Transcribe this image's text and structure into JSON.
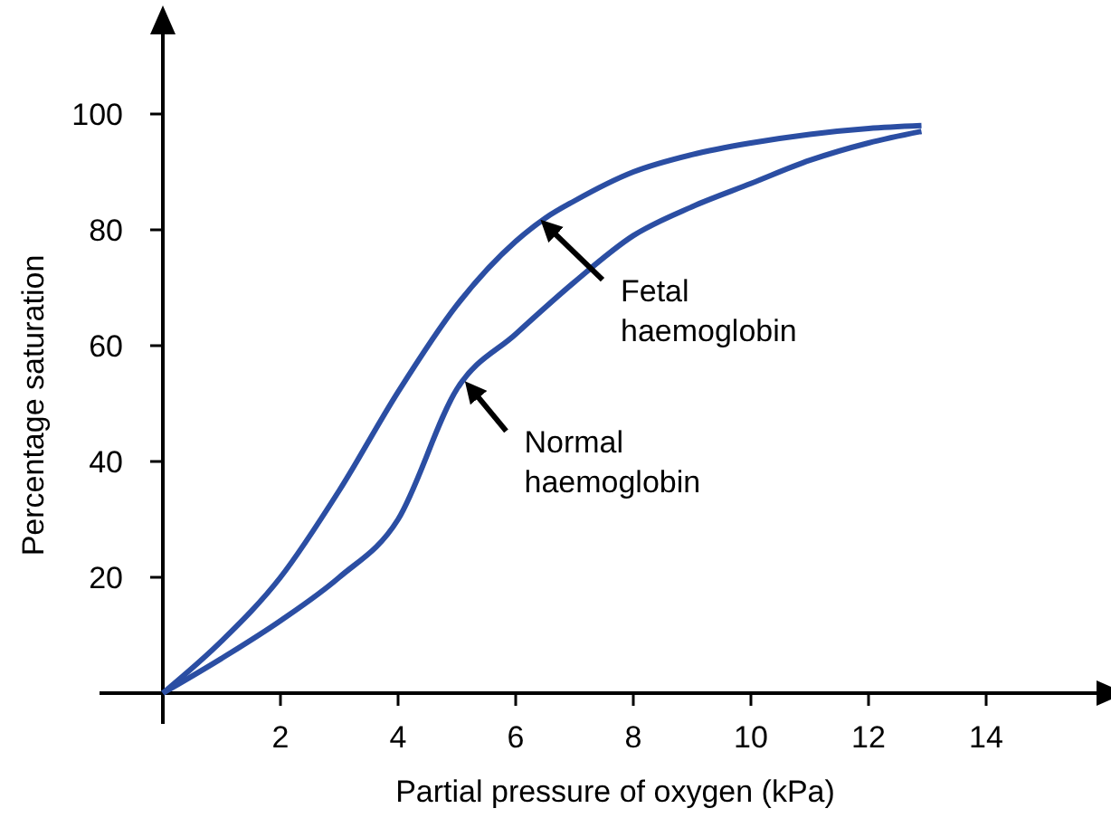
{
  "chart_data": {
    "type": "line",
    "xlabel": "Partial pressure of oxygen (kPa)",
    "ylabel": "Percentage saturation",
    "xlim": [
      0,
      16
    ],
    "ylim": [
      0,
      115
    ],
    "xticks": [
      2,
      4,
      6,
      8,
      10,
      12,
      14
    ],
    "yticks": [
      20,
      40,
      60,
      80,
      100
    ],
    "grid": false,
    "marker": "none",
    "line_style": "solid",
    "series": [
      {
        "color": "#2b4ea3",
        "x": [
          0,
          1,
          2,
          3,
          4,
          5,
          6,
          6.5,
          7,
          8,
          9,
          10,
          11,
          12,
          12.9
        ],
        "values": [
          0,
          9,
          20,
          35,
          52,
          67,
          78,
          82,
          85,
          90,
          93,
          95,
          96.5,
          97.5,
          98
        ]
      },
      {
        "color": "#2b4ea3",
        "x": [
          0,
          1,
          2,
          3,
          4,
          5,
          6,
          7,
          8,
          9,
          10,
          11,
          12,
          12.9
        ],
        "values": [
          0,
          6,
          12.5,
          20,
          30,
          52.5,
          62,
          71,
          79,
          84,
          88,
          92,
          95,
          97
        ]
      }
    ],
    "annotations": [
      {
        "text": "Fetal haemoglobin",
        "x": 6.4,
        "y": 82
      },
      {
        "text": "Normal haemoglobin",
        "x": 5.1,
        "y": 54
      }
    ]
  }
}
